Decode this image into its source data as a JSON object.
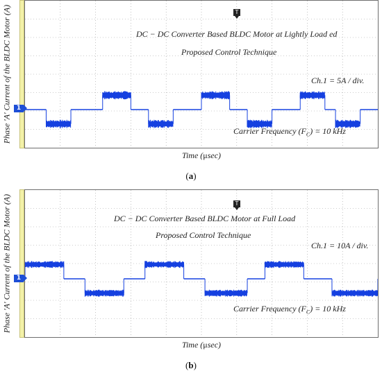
{
  "figure": {
    "panel_a": {
      "title": "DC − DC Converter Based BLDC Motor at Lightly Load ed",
      "subtitle": "Proposed Control Technique",
      "scale": "Ch.1 = 5A / div.",
      "carrier": "Carrier Frequency (F",
      "carrier_sub": "C",
      "carrier_end": ") = 10 kHz",
      "ylabel": "Phase 'A' Current of the BLDC Motor (A)",
      "xlabel_pre": "Time (",
      "xlabel_mu": "μ",
      "xlabel_post": "sec)",
      "caption_open": "(",
      "caption_letter": "a",
      "caption_close": ")",
      "channel_marker": "1",
      "trigger_marker": "T"
    },
    "panel_b": {
      "title": "DC − DC Converter Based BLDC Motor at Full Load",
      "subtitle": "Proposed Control Technique",
      "scale": "Ch.1 = 10A / div.",
      "carrier": "Carrier Frequency (F",
      "carrier_sub": "C",
      "carrier_end": ") = 10 kHz",
      "ylabel": "Phase 'A' Current of the BLDC Motor (A)",
      "xlabel_pre": "Time (",
      "xlabel_mu": "μ",
      "xlabel_post": "sec)",
      "caption_open": "(",
      "caption_letter": "b",
      "caption_close": ")",
      "channel_marker": "1",
      "trigger_marker": "T"
    }
  },
  "colors": {
    "trace": "#1540e0",
    "grid": "#9a9a9a",
    "strip": "#f3f1a8"
  },
  "chart_data": [
    {
      "type": "line",
      "title": "DC − DC Converter Based BLDC Motor at Lightly Load ed",
      "xlabel": "Time (μsec)",
      "ylabel": "Phase 'A' Current of the BLDC Motor (A)",
      "y_units": "div",
      "xlim": [
        0,
        10
      ],
      "ylim": [
        -4,
        4
      ],
      "grid": true,
      "series": [
        {
          "segments": [
            {
              "x0": 0.0,
              "x1": 0.6,
              "level": 0.0
            },
            {
              "x0": 0.6,
              "x1": 1.3,
              "level": -0.3
            },
            {
              "x0": 1.3,
              "x1": 2.2,
              "level": 0.0
            },
            {
              "x0": 2.2,
              "x1": 3.0,
              "level": 0.3
            },
            {
              "x0": 3.0,
              "x1": 3.5,
              "level": 0.0
            },
            {
              "x0": 3.5,
              "x1": 4.2,
              "level": -0.3
            },
            {
              "x0": 4.2,
              "x1": 5.0,
              "level": 0.0
            },
            {
              "x0": 5.0,
              "x1": 5.8,
              "level": 0.3
            },
            {
              "x0": 5.8,
              "x1": 6.3,
              "level": 0.0
            },
            {
              "x0": 6.3,
              "x1": 7.0,
              "level": -0.3
            },
            {
              "x0": 7.0,
              "x1": 7.8,
              "level": 0.0
            },
            {
              "x0": 7.8,
              "x1": 8.5,
              "level": 0.3
            },
            {
              "x0": 8.5,
              "x1": 8.8,
              "level": 0.0
            },
            {
              "x0": 8.8,
              "x1": 9.5,
              "level": -0.3
            },
            {
              "x0": 9.5,
              "x1": 10.0,
              "level": 0.0
            }
          ]
        }
      ]
    },
    {
      "type": "line",
      "title": "DC − DC Converter Based BLDC Motor at Full Load",
      "xlabel": "Time (μsec)",
      "ylabel": "Phase 'A' Current of the BLDC Motor (A)",
      "y_units": "div",
      "xlim": [
        0,
        10
      ],
      "ylim": [
        -4,
        4
      ],
      "grid": true,
      "series": [
        {
          "segments": [
            {
              "x0": 0.0,
              "x1": 1.1,
              "level": 0.3
            },
            {
              "x0": 1.1,
              "x1": 1.7,
              "level": 0.0
            },
            {
              "x0": 1.7,
              "x1": 2.8,
              "level": -0.3
            },
            {
              "x0": 2.8,
              "x1": 3.4,
              "level": 0.0
            },
            {
              "x0": 3.4,
              "x1": 4.5,
              "level": 0.3
            },
            {
              "x0": 4.5,
              "x1": 5.1,
              "level": 0.0
            },
            {
              "x0": 5.1,
              "x1": 6.3,
              "level": -0.3
            },
            {
              "x0": 6.3,
              "x1": 6.8,
              "level": 0.0
            },
            {
              "x0": 6.8,
              "x1": 7.9,
              "level": 0.3
            },
            {
              "x0": 7.9,
              "x1": 8.7,
              "level": 0.0
            },
            {
              "x0": 8.7,
              "x1": 10.0,
              "level": -0.3
            }
          ]
        }
      ]
    }
  ]
}
